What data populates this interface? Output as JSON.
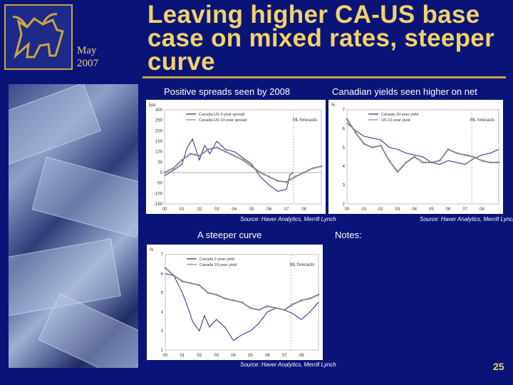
{
  "header": {
    "title": "Leaving higher CA-US base case on mixed rates, steeper curve",
    "date_month": "May",
    "date_year": "2007",
    "page_number": "25"
  },
  "panels": {
    "top_left_title": "Positive spreads seen by 2008",
    "top_right_title": "Canadian yields seen higher on net",
    "bottom_left_title": "A steeper curve",
    "notes_title": "Notes:"
  },
  "sources": {
    "top_left": "Source: Haver Analytics, Merrill Lynch",
    "top_right": "Source: Haver Analytics, Merrill Lynch",
    "bottom": "Source: Haver Analytics, Merrill Lynch"
  },
  "colors": {
    "title": "#f2d36a",
    "background": "#0a1478",
    "series_a": "#1e2a8c",
    "series_b": "#8a8a8a"
  },
  "chart_data": [
    {
      "type": "line",
      "unit": "bps",
      "annotation": "ML forecasts",
      "x_ticks": [
        "00",
        "01",
        "02",
        "03",
        "04",
        "05",
        "06",
        "07",
        "08"
      ],
      "y_ticks": [
        -150,
        -100,
        -50,
        0,
        50,
        100,
        150,
        200,
        250,
        300
      ],
      "ylim": [
        -150,
        300
      ],
      "series": [
        {
          "name": "Canada-US 2-year spread",
          "x": [
            2000,
            2000.5,
            2001,
            2001.3,
            2001.6,
            2002,
            2002.3,
            2002.6,
            2003,
            2003.5,
            2004,
            2004.5,
            2005,
            2005.5,
            2006,
            2006.5,
            2007,
            2007.2,
            2007.4
          ],
          "values": [
            -15,
            10,
            40,
            120,
            160,
            60,
            130,
            90,
            150,
            110,
            100,
            70,
            40,
            -20,
            -60,
            -90,
            -80,
            -10,
            0
          ]
        },
        {
          "name": "Canada-US 10-year spread",
          "x": [
            2000,
            2000.5,
            2001,
            2001.5,
            2002,
            2002.5,
            2003,
            2003.5,
            2004,
            2004.5,
            2005,
            2005.5,
            2006,
            2006.5,
            2007,
            2007.5,
            2008,
            2008.5,
            2009
          ],
          "values": [
            0,
            20,
            60,
            90,
            80,
            110,
            120,
            100,
            80,
            60,
            30,
            0,
            -20,
            -40,
            -45,
            -20,
            0,
            20,
            30
          ]
        }
      ]
    },
    {
      "type": "line",
      "unit": "%",
      "annotation": "ML forecasts",
      "x_ticks": [
        "00",
        "01",
        "02",
        "03",
        "04",
        "05",
        "06",
        "07",
        "08"
      ],
      "y_ticks": [
        2,
        3,
        4,
        5,
        6,
        7
      ],
      "ylim": [
        2,
        7
      ],
      "series": [
        {
          "name": "Canada 10-year yield",
          "x": [
            2000,
            2000.5,
            2001,
            2001.5,
            2002,
            2002.5,
            2003,
            2003.5,
            2004,
            2004.5,
            2005,
            2005.5,
            2006,
            2006.5,
            2007,
            2007.5,
            2008,
            2008.5,
            2009
          ],
          "values": [
            6.3,
            5.9,
            5.6,
            5.5,
            5.4,
            5.0,
            4.9,
            4.7,
            4.6,
            4.5,
            4.2,
            4.1,
            4.3,
            4.2,
            4.1,
            4.4,
            4.6,
            4.7,
            4.9
          ]
        },
        {
          "name": "US 10-year yield",
          "x": [
            2000,
            2000.5,
            2001,
            2001.5,
            2002,
            2002.5,
            2003,
            2003.5,
            2004,
            2004.5,
            2005,
            2005.5,
            2006,
            2006.5,
            2007,
            2007.5,
            2008,
            2008.5,
            2009
          ],
          "values": [
            6.5,
            5.8,
            5.2,
            5.0,
            5.1,
            4.3,
            3.7,
            4.2,
            4.5,
            4.2,
            4.2,
            4.3,
            4.9,
            4.7,
            4.6,
            4.5,
            4.3,
            4.2,
            4.2
          ]
        }
      ]
    },
    {
      "type": "line",
      "unit": "%",
      "annotation": "ML forecasts",
      "x_ticks": [
        "00",
        "01",
        "02",
        "03",
        "04",
        "05",
        "06",
        "07",
        "08"
      ],
      "y_ticks": [
        2,
        3,
        4,
        5,
        6,
        7
      ],
      "ylim": [
        2,
        7
      ],
      "series": [
        {
          "name": "Canada 2-year yield",
          "x": [
            2000,
            2000.5,
            2001,
            2001.3,
            2001.6,
            2002,
            2002.3,
            2002.6,
            2003,
            2003.5,
            2004,
            2004.5,
            2005,
            2005.5,
            2006,
            2006.5,
            2007,
            2007.5,
            2008,
            2008.5,
            2009
          ],
          "values": [
            6.0,
            5.9,
            5.0,
            4.3,
            3.5,
            3.0,
            3.8,
            3.2,
            3.6,
            3.2,
            2.5,
            2.8,
            3.0,
            3.4,
            4.0,
            4.2,
            4.1,
            3.9,
            3.6,
            4.0,
            4.5
          ]
        },
        {
          "name": "Canada 10-year yield",
          "x": [
            2000,
            2000.5,
            2001,
            2001.5,
            2002,
            2002.5,
            2003,
            2003.5,
            2004,
            2004.5,
            2005,
            2005.5,
            2006,
            2006.5,
            2007,
            2007.5,
            2008,
            2008.5,
            2009
          ],
          "values": [
            6.3,
            5.9,
            5.6,
            5.5,
            5.4,
            5.0,
            4.9,
            4.7,
            4.6,
            4.5,
            4.2,
            4.1,
            4.3,
            4.2,
            4.1,
            4.4,
            4.6,
            4.7,
            4.9
          ]
        }
      ]
    }
  ]
}
